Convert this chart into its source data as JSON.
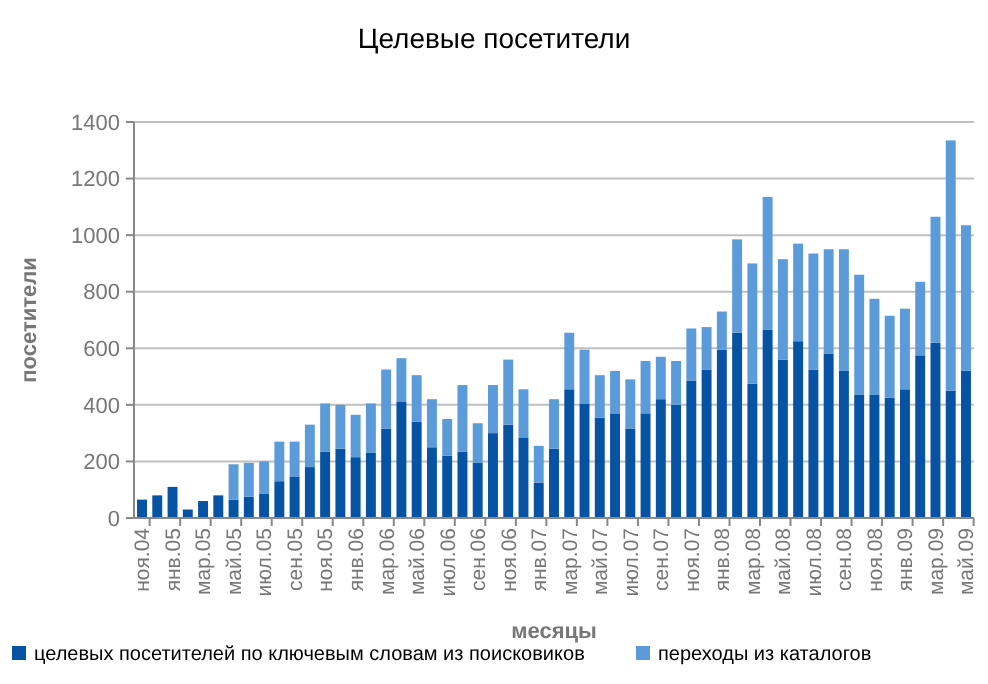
{
  "chart_data": {
    "type": "bar",
    "title": "Целевые посетители",
    "xlabel": "месяцы",
    "ylabel": "посетители",
    "stacked": true,
    "grid": "y",
    "legend": "bottom",
    "categories": [
      "ноя.04",
      null,
      "янв.05",
      null,
      "мар.05",
      null,
      "май.05",
      null,
      "июл.05",
      null,
      "сен.05",
      null,
      "ноя.05",
      null,
      "янв.06",
      null,
      "мар.06",
      null,
      "май.06",
      null,
      "июл.06",
      null,
      "сен.06",
      null,
      "ноя.06",
      null,
      "янв.07",
      null,
      "мар.07",
      null,
      "май.07",
      null,
      "июл.07",
      null,
      "сен.07",
      null,
      "ноя.07",
      null,
      "янв.08",
      null,
      "мар.08",
      null,
      "май.08",
      null,
      "июл.08",
      null,
      "сен.08",
      null,
      "ноя.08",
      null,
      "янв.09",
      null,
      "мар.09",
      null,
      "май.09"
    ],
    "ylim": [
      0,
      1400
    ],
    "yticks": [
      0,
      200,
      400,
      600,
      800,
      1000,
      1200,
      1400
    ],
    "series": [
      {
        "name": "целевых посетителей по ключевым словам из поисковиков",
        "color": "#0652a3",
        "values": [
          65,
          80,
          110,
          30,
          60,
          80,
          65,
          75,
          85,
          130,
          145,
          180,
          235,
          245,
          215,
          230,
          315,
          410,
          340,
          250,
          220,
          235,
          195,
          300,
          330,
          285,
          125,
          245,
          455,
          405,
          355,
          370,
          315,
          370,
          420,
          400,
          485,
          525,
          595,
          655,
          475,
          665,
          560,
          625,
          525,
          580,
          520,
          435,
          435,
          425,
          455,
          575,
          620,
          450,
          520
        ]
      },
      {
        "name": "переходы из каталогов",
        "color": "#5b9bd9",
        "values": [
          0,
          0,
          0,
          0,
          0,
          0,
          125,
          120,
          115,
          140,
          125,
          150,
          170,
          155,
          150,
          175,
          210,
          155,
          165,
          170,
          130,
          235,
          140,
          170,
          230,
          170,
          130,
          175,
          200,
          190,
          150,
          150,
          175,
          185,
          150,
          155,
          185,
          150,
          135,
          330,
          425,
          470,
          355,
          345,
          410,
          370,
          430,
          425,
          340,
          290,
          285,
          260,
          445,
          885,
          515
        ]
      }
    ]
  }
}
